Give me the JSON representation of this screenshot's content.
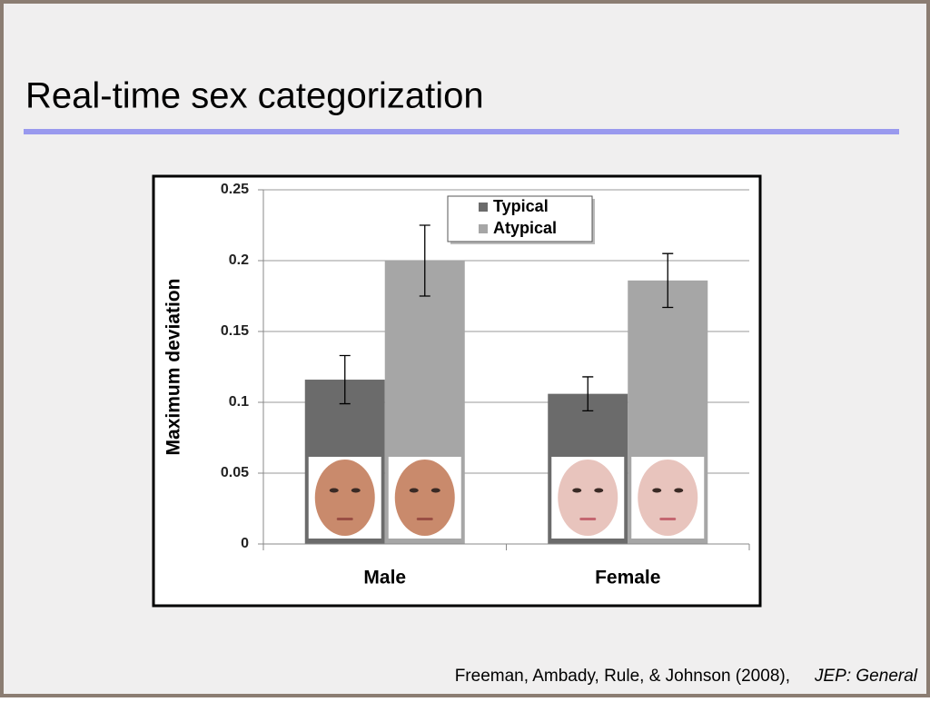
{
  "slide": {
    "title": "Real-time sex categorization",
    "citation": "Freeman, Ambady, Rule, & Johnson (2008),",
    "journal": "JEP: General"
  },
  "chart_data": {
    "type": "bar",
    "y_label": "Maximum deviation",
    "categories": [
      "Male",
      "Female"
    ],
    "series": [
      {
        "name": "Typical",
        "color": "#6b6b6b",
        "values": [
          0.116,
          0.106
        ],
        "errors": [
          0.017,
          0.012
        ]
      },
      {
        "name": "Atypical",
        "color": "#a6a6a6",
        "values": [
          0.2,
          0.186
        ],
        "errors": [
          0.025,
          0.019
        ]
      }
    ],
    "ylim": [
      0,
      0.25
    ],
    "yticks": [
      0,
      0.05,
      0.1,
      0.15,
      0.2,
      0.25
    ],
    "grid": true,
    "legend": "top"
  }
}
